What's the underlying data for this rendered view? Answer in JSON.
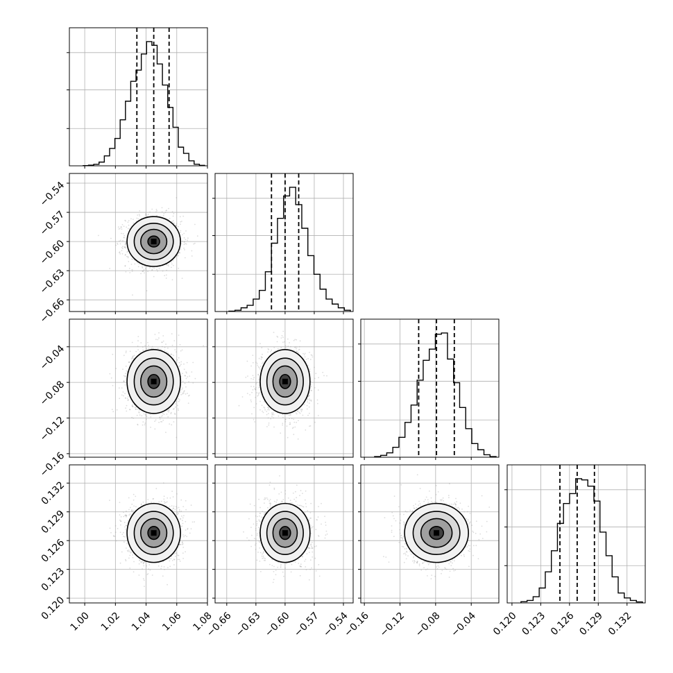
{
  "chart_data": {
    "type": "corner",
    "grid": true,
    "params": [
      {
        "mean": 1.045,
        "sd": 0.0085,
        "quantiles": [
          1.034,
          1.045,
          1.055
        ],
        "range": [
          0.99,
          1.08
        ],
        "ticks": [
          1.0,
          1.02,
          1.04,
          1.06,
          1.08
        ],
        "tick_labels": [
          "1.00",
          "1.02",
          "1.04",
          "1.06",
          "1.08"
        ]
      },
      {
        "mean": -0.6,
        "sd": 0.0125,
        "quantiles": [
          -0.614,
          -0.6,
          -0.586
        ],
        "range": [
          -0.672,
          -0.53
        ],
        "ticks": [
          -0.66,
          -0.63,
          -0.6,
          -0.57,
          -0.54
        ],
        "tick_labels": [
          "−0.66",
          "−0.63",
          "−0.60",
          "−0.57",
          "−0.54"
        ]
      },
      {
        "mean": -0.079,
        "sd": 0.0175,
        "quantiles": [
          -0.099,
          -0.079,
          -0.059
        ],
        "range": [
          -0.164,
          -0.009
        ],
        "ticks": [
          -0.16,
          -0.12,
          -0.08,
          -0.04
        ],
        "tick_labels": [
          "−0.16",
          "−0.12",
          "−0.08",
          "−0.04"
        ]
      },
      {
        "mean": 0.1268,
        "sd": 0.0015,
        "quantiles": [
          0.125,
          0.1268,
          0.1286
        ],
        "range": [
          0.1195,
          0.1339
        ],
        "ticks": [
          0.12,
          0.123,
          0.126,
          0.129,
          0.132
        ],
        "tick_labels": [
          "0.120",
          "0.123",
          "0.126",
          "0.129",
          "0.132"
        ]
      }
    ],
    "histograms": [
      [
        0.002,
        0.005,
        0.012,
        0.03,
        0.08,
        0.14,
        0.22,
        0.37,
        0.52,
        0.68,
        0.77,
        0.9,
        1.0,
        0.97,
        0.82,
        0.65,
        0.47,
        0.31,
        0.15,
        0.1,
        0.04,
        0.013,
        0.004
      ],
      [
        0.003,
        0.01,
        0.03,
        0.05,
        0.1,
        0.17,
        0.32,
        0.55,
        0.75,
        0.93,
        1.0,
        0.86,
        0.67,
        0.45,
        0.3,
        0.18,
        0.1,
        0.06,
        0.03,
        0.01
      ],
      [
        0.005,
        0.015,
        0.035,
        0.08,
        0.16,
        0.28,
        0.42,
        0.62,
        0.78,
        0.87,
        0.99,
        1.0,
        0.79,
        0.6,
        0.4,
        0.23,
        0.11,
        0.06,
        0.02,
        0.005
      ],
      [
        0.01,
        0.02,
        0.05,
        0.12,
        0.25,
        0.42,
        0.64,
        0.8,
        0.88,
        1.0,
        0.99,
        0.94,
        0.82,
        0.57,
        0.38,
        0.21,
        0.08,
        0.04,
        0.02,
        0.008
      ]
    ]
  }
}
